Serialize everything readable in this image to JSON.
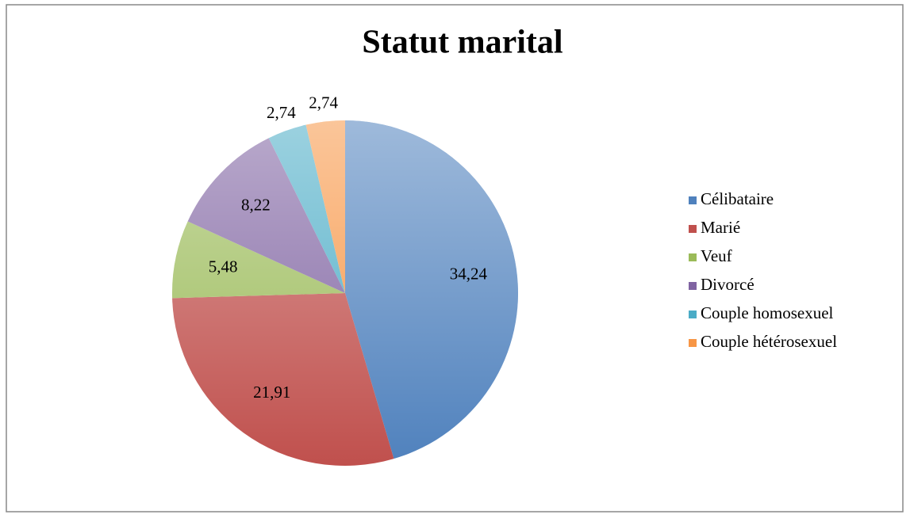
{
  "chart_data": {
    "type": "pie",
    "title": "Statut marital",
    "categories": [
      "Célibataire",
      "Marié",
      "Veuf",
      "Divorcé",
      "Couple homosexuel",
      "Couple hétérosexuel"
    ],
    "values": [
      34.24,
      21.91,
      5.48,
      8.22,
      2.74,
      2.74
    ],
    "value_labels": [
      "34,24",
      "21,91",
      "5,48",
      "8,22",
      "2,74",
      "2,74"
    ],
    "colors": [
      "#4f81bd",
      "#c0504d",
      "#9bbb59",
      "#8064a2",
      "#4bacc6",
      "#f79646"
    ],
    "legend": "right"
  }
}
